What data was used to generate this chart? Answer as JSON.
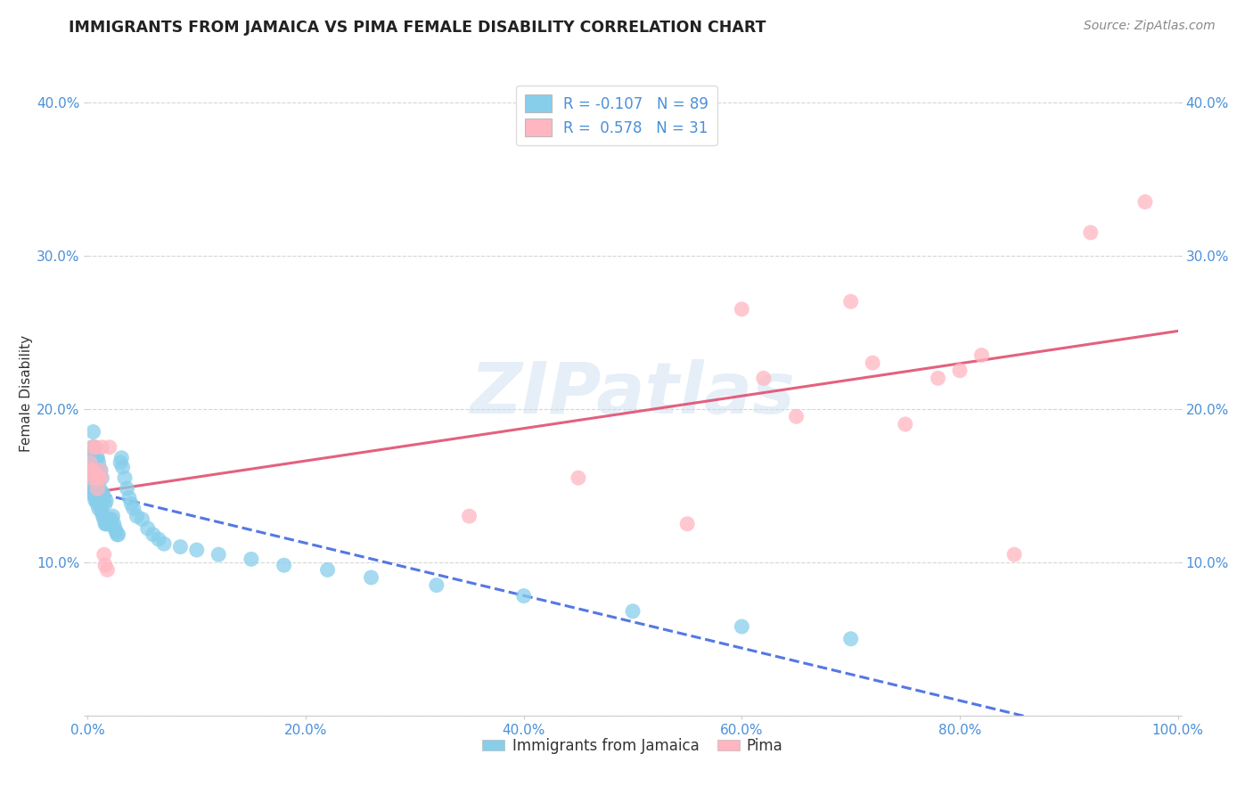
{
  "title": "IMMIGRANTS FROM JAMAICA VS PIMA FEMALE DISABILITY CORRELATION CHART",
  "source": "Source: ZipAtlas.com",
  "ylabel": "Female Disability",
  "xlim": [
    0.0,
    1.0
  ],
  "ylim": [
    0.0,
    0.42
  ],
  "xticks": [
    0.0,
    0.2,
    0.4,
    0.6,
    0.8,
    1.0
  ],
  "xticklabels": [
    "0.0%",
    "20.0%",
    "40.0%",
    "60.0%",
    "80.0%",
    "100.0%"
  ],
  "yticks": [
    0.0,
    0.1,
    0.2,
    0.3,
    0.4
  ],
  "yticklabels": [
    "",
    "10.0%",
    "20.0%",
    "30.0%",
    "40.0%"
  ],
  "legend_labels": [
    "Immigrants from Jamaica",
    "Pima"
  ],
  "blue_color": "#87CEEB",
  "pink_color": "#FFB6C1",
  "blue_line_color": "#4169E1",
  "pink_line_color": "#E05070",
  "r_blue": -0.107,
  "n_blue": 89,
  "r_pink": 0.578,
  "n_pink": 31,
  "blue_scatter_x": [
    0.002,
    0.003,
    0.003,
    0.003,
    0.003,
    0.004,
    0.004,
    0.004,
    0.004,
    0.005,
    0.005,
    0.005,
    0.005,
    0.005,
    0.006,
    0.006,
    0.006,
    0.006,
    0.006,
    0.007,
    0.007,
    0.007,
    0.007,
    0.008,
    0.008,
    0.008,
    0.008,
    0.009,
    0.009,
    0.009,
    0.009,
    0.01,
    0.01,
    0.01,
    0.01,
    0.011,
    0.011,
    0.011,
    0.012,
    0.012,
    0.012,
    0.013,
    0.013,
    0.013,
    0.014,
    0.014,
    0.015,
    0.015,
    0.016,
    0.016,
    0.017,
    0.017,
    0.018,
    0.019,
    0.02,
    0.021,
    0.022,
    0.023,
    0.024,
    0.025,
    0.026,
    0.027,
    0.028,
    0.03,
    0.031,
    0.032,
    0.034,
    0.036,
    0.038,
    0.04,
    0.042,
    0.045,
    0.05,
    0.055,
    0.06,
    0.065,
    0.07,
    0.085,
    0.1,
    0.12,
    0.15,
    0.18,
    0.22,
    0.26,
    0.32,
    0.4,
    0.5,
    0.6,
    0.7
  ],
  "blue_scatter_y": [
    0.145,
    0.155,
    0.16,
    0.165,
    0.17,
    0.15,
    0.155,
    0.16,
    0.175,
    0.145,
    0.15,
    0.16,
    0.17,
    0.185,
    0.145,
    0.15,
    0.155,
    0.165,
    0.175,
    0.14,
    0.148,
    0.155,
    0.165,
    0.14,
    0.148,
    0.158,
    0.168,
    0.138,
    0.148,
    0.158,
    0.168,
    0.135,
    0.145,
    0.155,
    0.165,
    0.138,
    0.148,
    0.16,
    0.135,
    0.145,
    0.16,
    0.132,
    0.142,
    0.155,
    0.13,
    0.145,
    0.128,
    0.142,
    0.125,
    0.138,
    0.125,
    0.14,
    0.125,
    0.125,
    0.128,
    0.125,
    0.128,
    0.13,
    0.125,
    0.122,
    0.12,
    0.118,
    0.118,
    0.165,
    0.168,
    0.162,
    0.155,
    0.148,
    0.142,
    0.138,
    0.135,
    0.13,
    0.128,
    0.122,
    0.118,
    0.115,
    0.112,
    0.11,
    0.108,
    0.105,
    0.102,
    0.098,
    0.095,
    0.09,
    0.085,
    0.078,
    0.068,
    0.058,
    0.05
  ],
  "pink_scatter_x": [
    0.002,
    0.003,
    0.004,
    0.005,
    0.006,
    0.007,
    0.008,
    0.009,
    0.01,
    0.011,
    0.012,
    0.013,
    0.015,
    0.016,
    0.018,
    0.02,
    0.35,
    0.45,
    0.55,
    0.6,
    0.62,
    0.65,
    0.7,
    0.72,
    0.75,
    0.78,
    0.8,
    0.82,
    0.85,
    0.92,
    0.97
  ],
  "pink_scatter_y": [
    0.165,
    0.155,
    0.16,
    0.175,
    0.158,
    0.175,
    0.155,
    0.148,
    0.155,
    0.16,
    0.155,
    0.175,
    0.105,
    0.098,
    0.095,
    0.175,
    0.13,
    0.155,
    0.125,
    0.265,
    0.22,
    0.195,
    0.27,
    0.23,
    0.19,
    0.22,
    0.225,
    0.235,
    0.105,
    0.315,
    0.335
  ],
  "watermark": "ZIPatlas",
  "background_color": "#FFFFFF"
}
